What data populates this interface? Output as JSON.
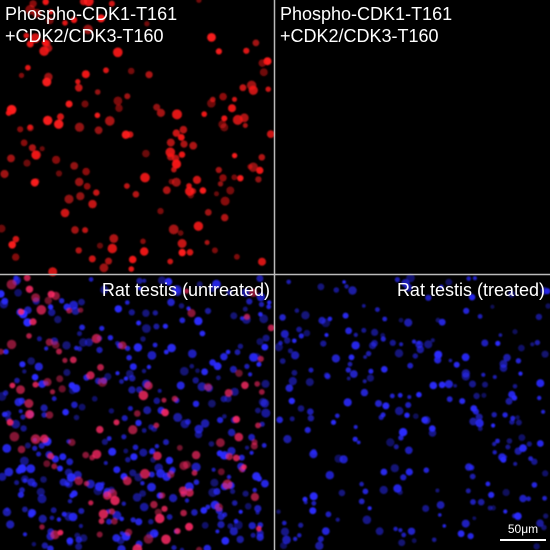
{
  "panels": [
    {
      "label_lines": [
        "Phospho-CDK1-T161",
        "+CDK2/CDK3-T160"
      ]
    },
    {
      "label_lines": [
        "Phospho-CDK1-T161",
        "+CDK2/CDK3-T160"
      ]
    },
    {
      "label_lines": [
        "Rat testis (untreated)"
      ]
    },
    {
      "label_lines": [
        "Rat testis (treated)"
      ]
    }
  ],
  "scale_bar": {
    "label": "50μm"
  }
}
